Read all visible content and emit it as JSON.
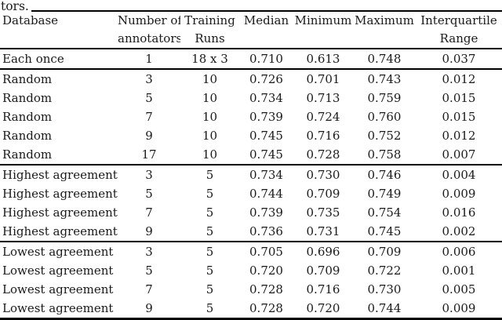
{
  "caption_fragment": "tors.",
  "colors": {
    "text": "#1a1a1a",
    "rule": "#000000",
    "background": "#ffffff"
  },
  "table": {
    "column_headers": [
      {
        "line1": "Database",
        "line2": ""
      },
      {
        "line1": "Number of",
        "line2": "annotators"
      },
      {
        "line1": "Training",
        "line2": "Runs"
      },
      {
        "line1": "Median",
        "line2": ""
      },
      {
        "line1": "Minimum",
        "line2": ""
      },
      {
        "line1": "Maximum",
        "line2": ""
      },
      {
        "line1": "Interquartile",
        "line2": "Range"
      }
    ],
    "groups": [
      {
        "rows": [
          [
            "Each once",
            "1",
            "18 x 3",
            "0.710",
            "0.613",
            "0.748",
            "0.037"
          ]
        ]
      },
      {
        "rows": [
          [
            "Random",
            "3",
            "10",
            "0.726",
            "0.701",
            "0.743",
            "0.012"
          ],
          [
            "Random",
            "5",
            "10",
            "0.734",
            "0.713",
            "0.759",
            "0.015"
          ],
          [
            "Random",
            "7",
            "10",
            "0.739",
            "0.724",
            "0.760",
            "0.015"
          ],
          [
            "Random",
            "9",
            "10",
            "0.745",
            "0.716",
            "0.752",
            "0.012"
          ],
          [
            "Random",
            "17",
            "10",
            "0.745",
            "0.728",
            "0.758",
            "0.007"
          ]
        ]
      },
      {
        "rows": [
          [
            "Highest agreement",
            "3",
            "5",
            "0.734",
            "0.730",
            "0.746",
            "0.004"
          ],
          [
            "Highest agreement",
            "5",
            "5",
            "0.744",
            "0.709",
            "0.749",
            "0.009"
          ],
          [
            "Highest agreement",
            "7",
            "5",
            "0.739",
            "0.735",
            "0.754",
            "0.016"
          ],
          [
            "Highest agreement",
            "9",
            "5",
            "0.736",
            "0.731",
            "0.745",
            "0.002"
          ]
        ]
      },
      {
        "rows": [
          [
            "Lowest agreement",
            "3",
            "5",
            "0.705",
            "0.696",
            "0.709",
            "0.006"
          ],
          [
            "Lowest agreement",
            "5",
            "5",
            "0.720",
            "0.709",
            "0.722",
            "0.001"
          ],
          [
            "Lowest agreement",
            "7",
            "5",
            "0.728",
            "0.716",
            "0.730",
            "0.005"
          ],
          [
            "Lowest agreement",
            "9",
            "5",
            "0.728",
            "0.720",
            "0.744",
            "0.009"
          ]
        ]
      }
    ]
  }
}
